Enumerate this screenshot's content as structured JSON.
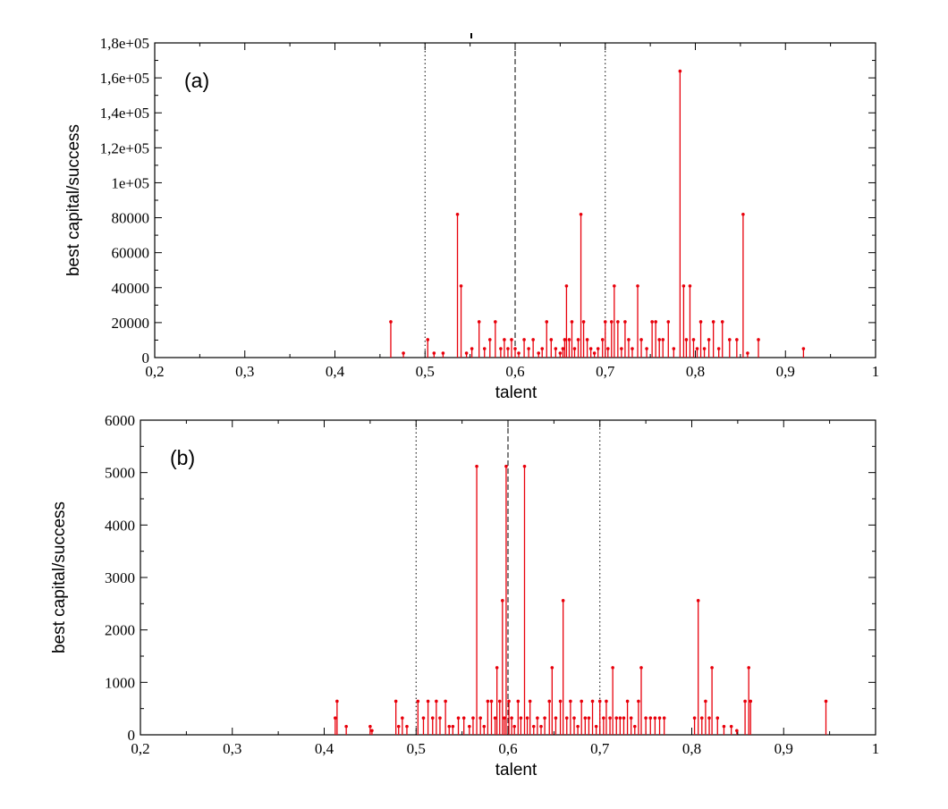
{
  "chart_data": [
    {
      "type": "stem",
      "panel_label": "(a)",
      "xlabel": "talent",
      "ylabel": "best capital/success",
      "xlim": [
        0.2,
        1.0
      ],
      "ylim": [
        0,
        180000
      ],
      "x_ticks": [
        0.2,
        0.3,
        0.4,
        0.5,
        0.6,
        0.7,
        0.8,
        0.9,
        1.0
      ],
      "x_tick_labels": [
        "0,2",
        "0,3",
        "0,4",
        "0,5",
        "0,6",
        "0,7",
        "0,8",
        "0,9",
        "1"
      ],
      "y_ticks": [
        0,
        20000,
        40000,
        60000,
        80000,
        100000,
        120000,
        140000,
        160000,
        180000
      ],
      "y_tick_labels": [
        "0",
        "20000",
        "40000",
        "60000",
        "80000",
        "1e+05",
        "1,2e+05",
        "1,4e+05",
        "1,6e+05",
        "1,8e+05"
      ],
      "reference_lines": [
        {
          "x": 0.5,
          "style": "dotted"
        },
        {
          "x": 0.6,
          "style": "dashed"
        },
        {
          "x": 0.7,
          "style": "dotted"
        }
      ],
      "series_color": "#e8000b",
      "points": [
        [
          0.462,
          20480
        ],
        [
          0.476,
          2560
        ],
        [
          0.503,
          10240
        ],
        [
          0.51,
          2560
        ],
        [
          0.52,
          2560
        ],
        [
          0.536,
          81920
        ],
        [
          0.54,
          40960
        ],
        [
          0.546,
          2560
        ],
        [
          0.552,
          5120
        ],
        [
          0.56,
          20480
        ],
        [
          0.566,
          5120
        ],
        [
          0.572,
          10240
        ],
        [
          0.578,
          20480
        ],
        [
          0.584,
          5120
        ],
        [
          0.588,
          10240
        ],
        [
          0.592,
          5120
        ],
        [
          0.596,
          10240
        ],
        [
          0.6,
          5120
        ],
        [
          0.604,
          2560
        ],
        [
          0.61,
          10240
        ],
        [
          0.615,
          5120
        ],
        [
          0.62,
          10240
        ],
        [
          0.626,
          2560
        ],
        [
          0.63,
          5120
        ],
        [
          0.635,
          20480
        ],
        [
          0.64,
          10240
        ],
        [
          0.645,
          5120
        ],
        [
          0.65,
          2560
        ],
        [
          0.653,
          5120
        ],
        [
          0.655,
          10240
        ],
        [
          0.657,
          40960
        ],
        [
          0.66,
          10240
        ],
        [
          0.663,
          20480
        ],
        [
          0.666,
          5120
        ],
        [
          0.67,
          10240
        ],
        [
          0.673,
          81920
        ],
        [
          0.676,
          20480
        ],
        [
          0.68,
          10240
        ],
        [
          0.684,
          5120
        ],
        [
          0.688,
          2560
        ],
        [
          0.692,
          5120
        ],
        [
          0.697,
          10240
        ],
        [
          0.7,
          20480
        ],
        [
          0.703,
          5120
        ],
        [
          0.707,
          20480
        ],
        [
          0.71,
          40960
        ],
        [
          0.714,
          20480
        ],
        [
          0.718,
          5120
        ],
        [
          0.722,
          20480
        ],
        [
          0.726,
          10240
        ],
        [
          0.73,
          5120
        ],
        [
          0.736,
          40960
        ],
        [
          0.74,
          10240
        ],
        [
          0.746,
          5120
        ],
        [
          0.752,
          20480
        ],
        [
          0.756,
          20480
        ],
        [
          0.76,
          10240
        ],
        [
          0.764,
          10240
        ],
        [
          0.77,
          20480
        ],
        [
          0.776,
          5120
        ],
        [
          0.783,
          163840
        ],
        [
          0.787,
          40960
        ],
        [
          0.79,
          10240
        ],
        [
          0.794,
          40960
        ],
        [
          0.798,
          10240
        ],
        [
          0.802,
          5120
        ],
        [
          0.806,
          20480
        ],
        [
          0.81,
          5120
        ],
        [
          0.815,
          10240
        ],
        [
          0.82,
          20480
        ],
        [
          0.826,
          5120
        ],
        [
          0.83,
          20480
        ],
        [
          0.838,
          10240
        ],
        [
          0.846,
          10240
        ],
        [
          0.853,
          81920
        ],
        [
          0.858,
          2560
        ],
        [
          0.87,
          10240
        ],
        [
          0.92,
          5120
        ]
      ]
    },
    {
      "type": "stem",
      "panel_label": "(b)",
      "xlabel": "talent",
      "ylabel": "best capital/success",
      "xlim": [
        0.2,
        1.0
      ],
      "ylim": [
        0,
        6000
      ],
      "x_ticks": [
        0.2,
        0.3,
        0.4,
        0.5,
        0.6,
        0.7,
        0.8,
        0.9,
        1.0
      ],
      "x_tick_labels": [
        "0,2",
        "0,3",
        "0,4",
        "0,5",
        "0,6",
        "0,7",
        "0,8",
        "0,9",
        "1"
      ],
      "y_ticks": [
        0,
        1000,
        2000,
        3000,
        4000,
        5000,
        6000
      ],
      "y_tick_labels": [
        "0",
        "1000",
        "2000",
        "3000",
        "4000",
        "5000",
        "6000"
      ],
      "reference_lines": [
        {
          "x": 0.5,
          "style": "dotted"
        },
        {
          "x": 0.6,
          "style": "dashed"
        },
        {
          "x": 0.7,
          "style": "dotted"
        }
      ],
      "series_color": "#e8000b",
      "points": [
        [
          0.412,
          320
        ],
        [
          0.414,
          640
        ],
        [
          0.424,
          160
        ],
        [
          0.45,
          160
        ],
        [
          0.452,
          80
        ],
        [
          0.478,
          640
        ],
        [
          0.481,
          160
        ],
        [
          0.485,
          320
        ],
        [
          0.49,
          160
        ],
        [
          0.502,
          640
        ],
        [
          0.508,
          320
        ],
        [
          0.513,
          640
        ],
        [
          0.518,
          320
        ],
        [
          0.522,
          640
        ],
        [
          0.526,
          320
        ],
        [
          0.532,
          640
        ],
        [
          0.536,
          160
        ],
        [
          0.54,
          160
        ],
        [
          0.546,
          320
        ],
        [
          0.552,
          320
        ],
        [
          0.558,
          160
        ],
        [
          0.562,
          320
        ],
        [
          0.566,
          5120
        ],
        [
          0.57,
          320
        ],
        [
          0.574,
          160
        ],
        [
          0.578,
          640
        ],
        [
          0.582,
          640
        ],
        [
          0.586,
          320
        ],
        [
          0.588,
          1280
        ],
        [
          0.591,
          640
        ],
        [
          0.594,
          2560
        ],
        [
          0.596,
          320
        ],
        [
          0.598,
          5120
        ],
        [
          0.601,
          640
        ],
        [
          0.604,
          320
        ],
        [
          0.607,
          160
        ],
        [
          0.611,
          640
        ],
        [
          0.614,
          320
        ],
        [
          0.618,
          5120
        ],
        [
          0.621,
          320
        ],
        [
          0.624,
          640
        ],
        [
          0.628,
          160
        ],
        [
          0.632,
          320
        ],
        [
          0.636,
          160
        ],
        [
          0.64,
          320
        ],
        [
          0.645,
          640
        ],
        [
          0.648,
          1280
        ],
        [
          0.652,
          320
        ],
        [
          0.657,
          640
        ],
        [
          0.66,
          2560
        ],
        [
          0.664,
          320
        ],
        [
          0.668,
          640
        ],
        [
          0.672,
          320
        ],
        [
          0.676,
          160
        ],
        [
          0.68,
          640
        ],
        [
          0.684,
          320
        ],
        [
          0.688,
          320
        ],
        [
          0.692,
          640
        ],
        [
          0.696,
          160
        ],
        [
          0.7,
          640
        ],
        [
          0.704,
          320
        ],
        [
          0.707,
          640
        ],
        [
          0.711,
          320
        ],
        [
          0.714,
          1280
        ],
        [
          0.718,
          320
        ],
        [
          0.722,
          320
        ],
        [
          0.726,
          320
        ],
        [
          0.73,
          640
        ],
        [
          0.734,
          320
        ],
        [
          0.738,
          160
        ],
        [
          0.742,
          640
        ],
        [
          0.745,
          1280
        ],
        [
          0.75,
          320
        ],
        [
          0.755,
          320
        ],
        [
          0.76,
          320
        ],
        [
          0.765,
          320
        ],
        [
          0.77,
          320
        ],
        [
          0.803,
          320
        ],
        [
          0.807,
          2560
        ],
        [
          0.811,
          320
        ],
        [
          0.815,
          640
        ],
        [
          0.819,
          320
        ],
        [
          0.822,
          1280
        ],
        [
          0.828,
          320
        ],
        [
          0.835,
          160
        ],
        [
          0.843,
          160
        ],
        [
          0.849,
          80
        ],
        [
          0.858,
          640
        ],
        [
          0.862,
          1280
        ],
        [
          0.864,
          640
        ],
        [
          0.946,
          640
        ]
      ]
    }
  ]
}
